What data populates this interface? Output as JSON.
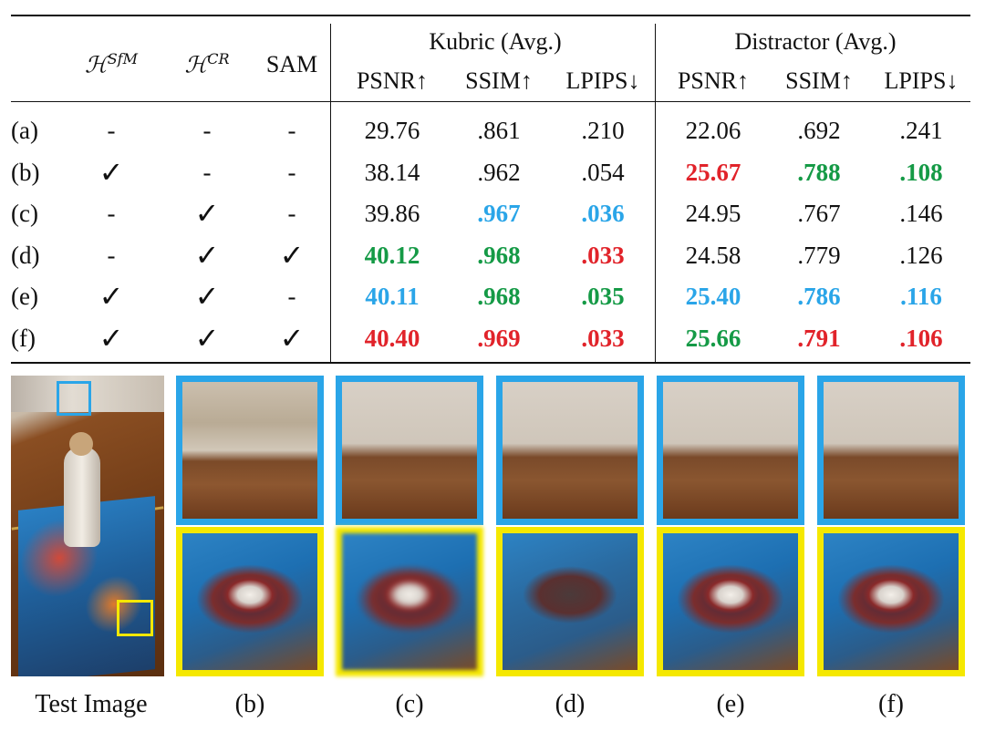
{
  "colors": {
    "red": "#e1232a",
    "green": "#159a46",
    "blue": "#2aa5e8",
    "yellow": "#f5e800"
  },
  "table": {
    "method_headers": {
      "sfm": {
        "base": "ℋ",
        "sup": "SfM"
      },
      "cr": {
        "base": "ℋ",
        "sup": "CR"
      },
      "sam": "SAM"
    },
    "groups": [
      "Kubric (Avg.)",
      "Distractor (Avg.)"
    ],
    "metrics": [
      "PSNR↑",
      "SSIM↑",
      "LPIPS↓",
      "PSNR↑",
      "SSIM↑",
      "LPIPS↓"
    ],
    "rows": [
      {
        "label": "(a)",
        "sfm": "-",
        "cr": "-",
        "sam": "-",
        "values": [
          {
            "v": "29.76",
            "c": ""
          },
          {
            "v": ".861",
            "c": ""
          },
          {
            "v": ".210",
            "c": ""
          },
          {
            "v": "22.06",
            "c": ""
          },
          {
            "v": ".692",
            "c": ""
          },
          {
            "v": ".241",
            "c": ""
          }
        ]
      },
      {
        "label": "(b)",
        "sfm": "✓",
        "cr": "-",
        "sam": "-",
        "values": [
          {
            "v": "38.14",
            "c": ""
          },
          {
            "v": ".962",
            "c": ""
          },
          {
            "v": ".054",
            "c": ""
          },
          {
            "v": "25.67",
            "c": "red"
          },
          {
            "v": ".788",
            "c": "green"
          },
          {
            "v": ".108",
            "c": "green"
          }
        ]
      },
      {
        "label": "(c)",
        "sfm": "-",
        "cr": "✓",
        "sam": "-",
        "values": [
          {
            "v": "39.86",
            "c": ""
          },
          {
            "v": ".967",
            "c": "blue"
          },
          {
            "v": ".036",
            "c": "blue"
          },
          {
            "v": "24.95",
            "c": ""
          },
          {
            "v": ".767",
            "c": ""
          },
          {
            "v": ".146",
            "c": ""
          }
        ]
      },
      {
        "label": "(d)",
        "sfm": "-",
        "cr": "✓",
        "sam": "✓",
        "values": [
          {
            "v": "40.12",
            "c": "green"
          },
          {
            "v": ".968",
            "c": "green"
          },
          {
            "v": ".033",
            "c": "red"
          },
          {
            "v": "24.58",
            "c": ""
          },
          {
            "v": ".779",
            "c": ""
          },
          {
            "v": ".126",
            "c": ""
          }
        ]
      },
      {
        "label": "(e)",
        "sfm": "✓",
        "cr": "✓",
        "sam": "-",
        "values": [
          {
            "v": "40.11",
            "c": "blue"
          },
          {
            "v": ".968",
            "c": "green"
          },
          {
            "v": ".035",
            "c": "green"
          },
          {
            "v": "25.40",
            "c": "blue"
          },
          {
            "v": ".786",
            "c": "blue"
          },
          {
            "v": ".116",
            "c": "blue"
          }
        ]
      },
      {
        "label": "(f)",
        "sfm": "✓",
        "cr": "✓",
        "sam": "✓",
        "values": [
          {
            "v": "40.40",
            "c": "red"
          },
          {
            "v": ".969",
            "c": "red"
          },
          {
            "v": ".033",
            "c": "red"
          },
          {
            "v": "25.66",
            "c": "green"
          },
          {
            "v": ".791",
            "c": "red"
          },
          {
            "v": ".106",
            "c": "red"
          }
        ]
      }
    ]
  },
  "figure": {
    "captions": [
      "Test Image",
      "(b)",
      "(c)",
      "(d)",
      "(e)",
      "(f)"
    ]
  }
}
